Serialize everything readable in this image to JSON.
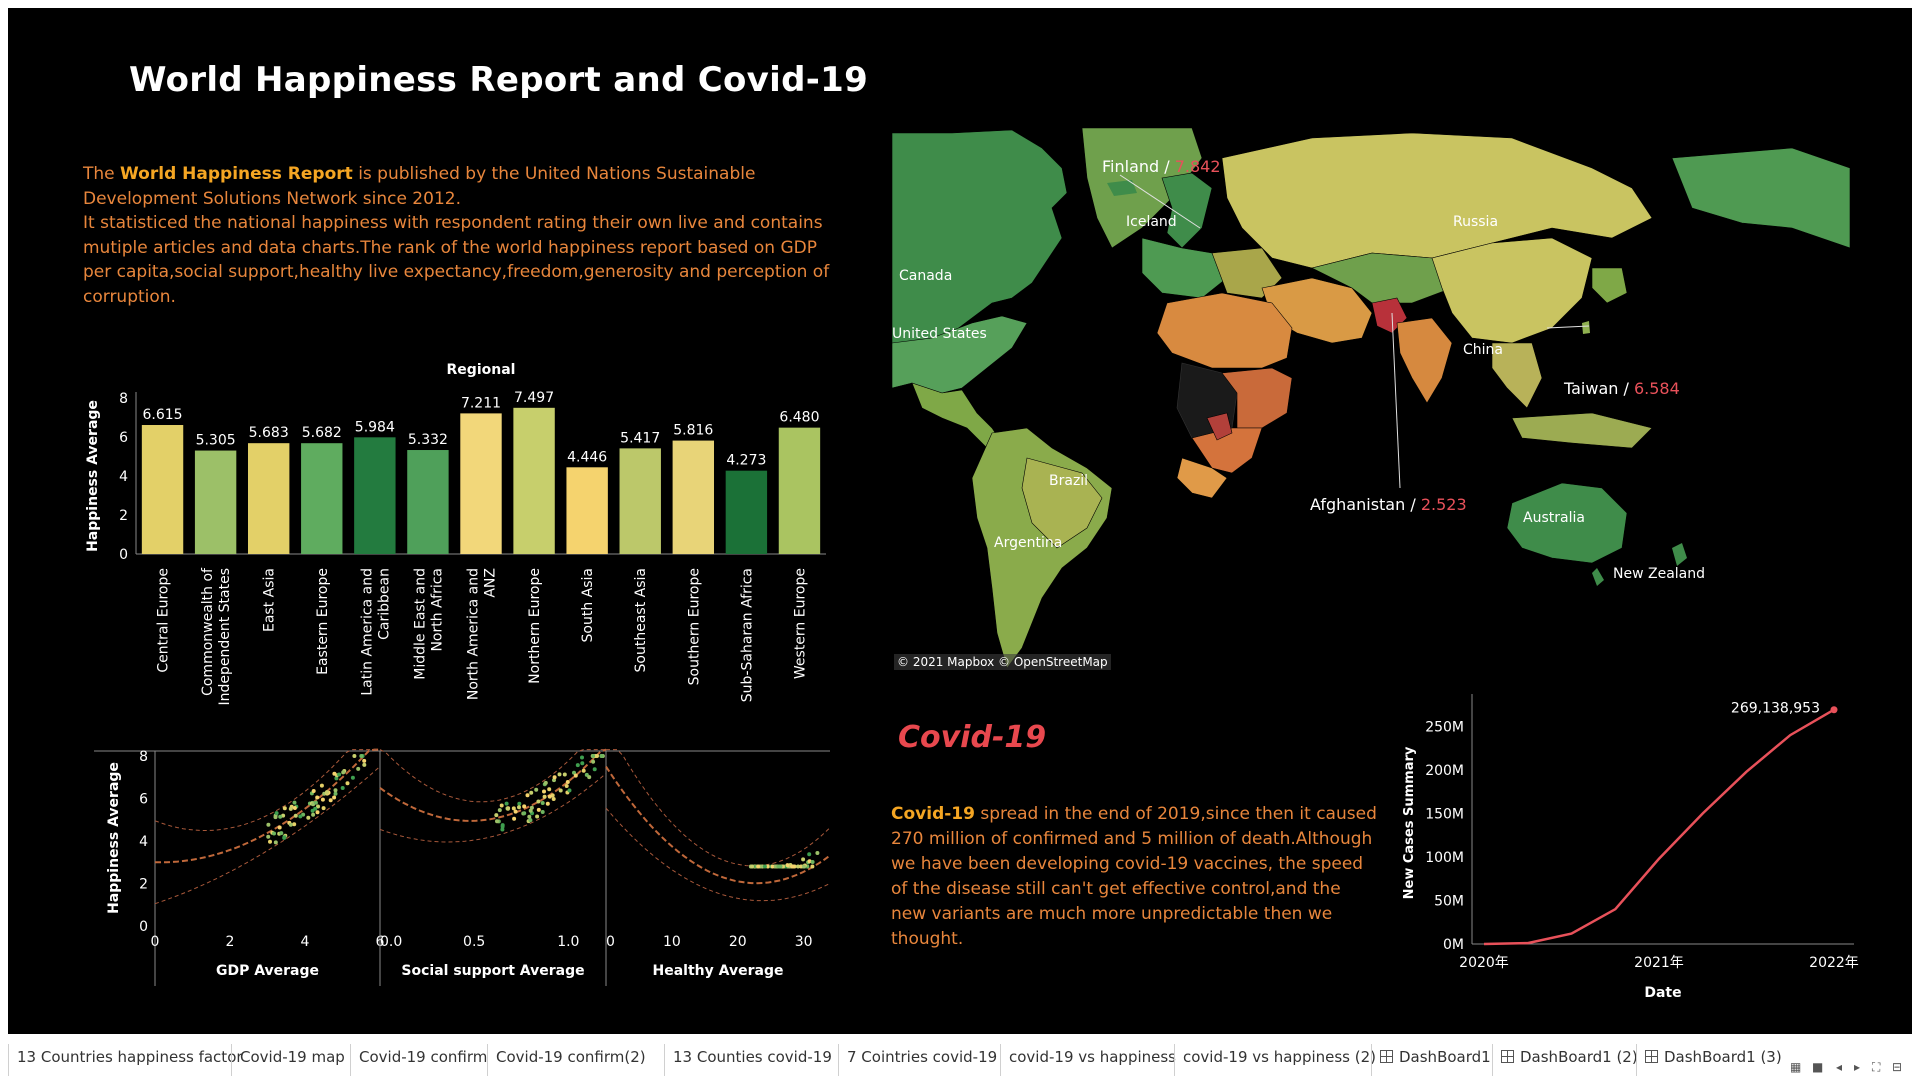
{
  "title": "World Happiness Report and Covid-19",
  "intro": {
    "pre": "The ",
    "bold": "World Happiness Report",
    "rest": " is published by the United Nations Sustainable Development Solutions Network since 2012.",
    "line2": "It statisticed the national happiness with respondent rating their own live and contains mutiple articles and data charts.The rank of the world happiness report  based on GDP per capita,social support,healthy live expectancy,freedom,generosity and perception of corruption."
  },
  "chart_data": [
    {
      "type": "bar",
      "title": "Regional",
      "ylabel": "Happiness Average",
      "ylim": [
        0,
        8
      ],
      "yticks": [
        "0",
        "2",
        "4",
        "6",
        "8"
      ],
      "categories": [
        "Central Europe",
        "Commonwealth of Independent States",
        "East Asia",
        "Eastern Europe",
        "Latin America and Caribbean",
        "Middle East and North Africa",
        "North America and ANZ",
        "Northern Europe",
        "South Asia",
        "Southeast Asia",
        "Southern Europe",
        "Sub-Saharan Africa",
        "Western Europe"
      ],
      "category_lines": [
        [
          "Central Europe"
        ],
        [
          "Commonwealth of",
          "Independent States"
        ],
        [
          "East Asia"
        ],
        [
          "Eastern Europe"
        ],
        [
          "Latin America and",
          "Caribbean"
        ],
        [
          "Middle East and",
          "North Africa"
        ],
        [
          "North America and",
          "ANZ"
        ],
        [
          "Northern Europe"
        ],
        [
          "South Asia"
        ],
        [
          "Southeast Asia"
        ],
        [
          "Southern Europe"
        ],
        [
          "Sub-Saharan Africa"
        ],
        [
          "Western Europe"
        ]
      ],
      "values": [
        6.615,
        5.305,
        5.683,
        5.682,
        5.984,
        5.332,
        7.211,
        7.497,
        4.446,
        5.417,
        5.816,
        4.273,
        6.48
      ],
      "labels": [
        "6.615",
        "5.305",
        "5.683",
        "5.682",
        "5.984",
        "5.332",
        "7.211",
        "7.497",
        "4.446",
        "5.417",
        "5.816",
        "4.273",
        "6.480"
      ],
      "colors": [
        "#e3d068",
        "#9cc068",
        "#e3d068",
        "#5fac5f",
        "#237b3f",
        "#4fa05a",
        "#f2d77a",
        "#c7cf6c",
        "#f5d36e",
        "#bcc86a",
        "#e8d478",
        "#1b7137",
        "#aac461"
      ]
    },
    {
      "type": "scatter",
      "ylabel": "Happiness Average",
      "ylim": [
        0,
        8
      ],
      "yticks": [
        "0",
        "2",
        "4",
        "6",
        "8"
      ],
      "panels": [
        {
          "xlabel": "GDP Average",
          "xlim": [
            0,
            6
          ],
          "xticks": [
            [
              "0",
              0
            ],
            [
              "2",
              2
            ],
            [
              "4",
              4
            ],
            [
              "6",
              6
            ]
          ]
        },
        {
          "xlabel": "Social support Average",
          "xlim": [
            0,
            1.2
          ],
          "xticks": [
            [
              "0.0",
              0
            ],
            [
              "0.5",
              0.5
            ],
            [
              "1.0",
              1.0
            ]
          ]
        },
        {
          "xlabel": "Healthy Average",
          "xlim": [
            0,
            34
          ],
          "xticks": [
            [
              "0",
              0
            ],
            [
              "10",
              10
            ],
            [
              "20",
              20
            ],
            [
              "30",
              30
            ]
          ]
        }
      ]
    },
    {
      "type": "line",
      "xlabel": "Date",
      "ylabel": "New Cases Summary",
      "ylim": [
        0,
        270000000
      ],
      "xticks": [
        "2020年",
        "2021年",
        "2022年"
      ],
      "yticks": [
        [
          "0M",
          0
        ],
        [
          "50M",
          50000000
        ],
        [
          "100M",
          100000000
        ],
        [
          "150M",
          150000000
        ],
        [
          "200M",
          200000000
        ],
        [
          "250M",
          250000000
        ]
      ],
      "x": [
        "2020-01",
        "2020-04",
        "2020-07",
        "2020-10",
        "2021-01",
        "2021-04",
        "2021-07",
        "2021-10",
        "2022-01"
      ],
      "values": [
        0,
        1000000,
        12000000,
        40000000,
        98000000,
        150000000,
        198000000,
        240000000,
        269138953
      ],
      "end_label": "269,138,953",
      "color": "#e8515a"
    }
  ],
  "map": {
    "attribution": "© 2021 Mapbox © OpenStreetMap",
    "labels": [
      "Iceland",
      "Russia",
      "Canada",
      "United States",
      "China",
      "Brazil",
      "Argentina",
      "Australia",
      "New Zealand"
    ],
    "callouts": [
      {
        "name": "Finland",
        "value": "7.842"
      },
      {
        "name": "Taiwan",
        "value": "6.584"
      },
      {
        "name": "Afghanistan",
        "value": "2.523"
      }
    ]
  },
  "covid": {
    "title": "Covid-19",
    "bold": "Covid-19",
    "text": " spread in the end of 2019,since then it caused 270 million of confirmed and 5 million of death.Although we have been developing covid-19 vaccines, the speed of the disease still can't get effective control,and the new variants are much more unpredictable then we thought."
  },
  "tabs": [
    "13 Countries happiness factor",
    "Covid-19 map",
    "Covid-19 confirm",
    "Covid-19 confirm(2)",
    "13 Counties covid-19",
    "7 Cointries covid-19",
    "covid-19 vs happiness",
    "covid-19 vs happiness (2)",
    "DashBoard1",
    "DashBoard1 (2)",
    "DashBoard1 (3)"
  ],
  "colors": {
    "accent": "#e8863c",
    "highlight": "#f5a623",
    "covid": "#e8484e"
  }
}
